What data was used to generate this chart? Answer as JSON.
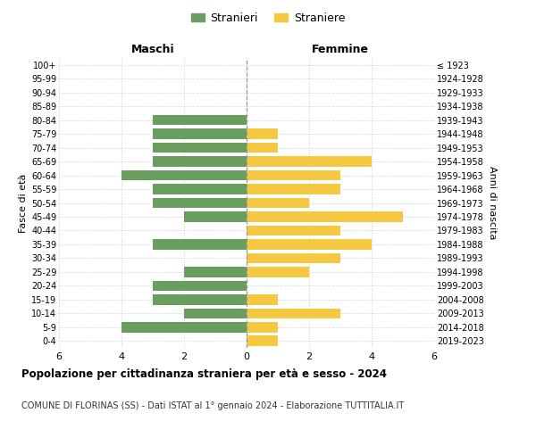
{
  "age_groups": [
    "0-4",
    "5-9",
    "10-14",
    "15-19",
    "20-24",
    "25-29",
    "30-34",
    "35-39",
    "40-44",
    "45-49",
    "50-54",
    "55-59",
    "60-64",
    "65-69",
    "70-74",
    "75-79",
    "80-84",
    "85-89",
    "90-94",
    "95-99",
    "100+"
  ],
  "birth_years": [
    "2019-2023",
    "2014-2018",
    "2009-2013",
    "2004-2008",
    "1999-2003",
    "1994-1998",
    "1989-1993",
    "1984-1988",
    "1979-1983",
    "1974-1978",
    "1969-1973",
    "1964-1968",
    "1959-1963",
    "1954-1958",
    "1949-1953",
    "1944-1948",
    "1939-1943",
    "1934-1938",
    "1929-1933",
    "1924-1928",
    "≤ 1923"
  ],
  "males": [
    0,
    4,
    2,
    3,
    3,
    2,
    0,
    3,
    0,
    2,
    3,
    3,
    4,
    3,
    3,
    3,
    3,
    0,
    0,
    0,
    0
  ],
  "females": [
    1,
    1,
    3,
    1,
    0,
    2,
    3,
    4,
    3,
    5,
    2,
    3,
    3,
    4,
    1,
    1,
    0,
    0,
    0,
    0,
    0
  ],
  "male_color": "#6a9e5e",
  "female_color": "#f5c842",
  "title_main": "Popolazione per cittadinanza straniera per età e sesso - 2024",
  "title_sub": "COMUNE DI FLORINAS (SS) - Dati ISTAT al 1° gennaio 2024 - Elaborazione TUTTITALIA.IT",
  "legend_male": "Stranieri",
  "legend_female": "Straniere",
  "xlabel_left": "Maschi",
  "xlabel_right": "Femmine",
  "ylabel_left": "Fasce di età",
  "ylabel_right": "Anni di nascita",
  "xlim": 6,
  "background_color": "#ffffff",
  "grid_color": "#cccccc",
  "bar_height": 0.75
}
